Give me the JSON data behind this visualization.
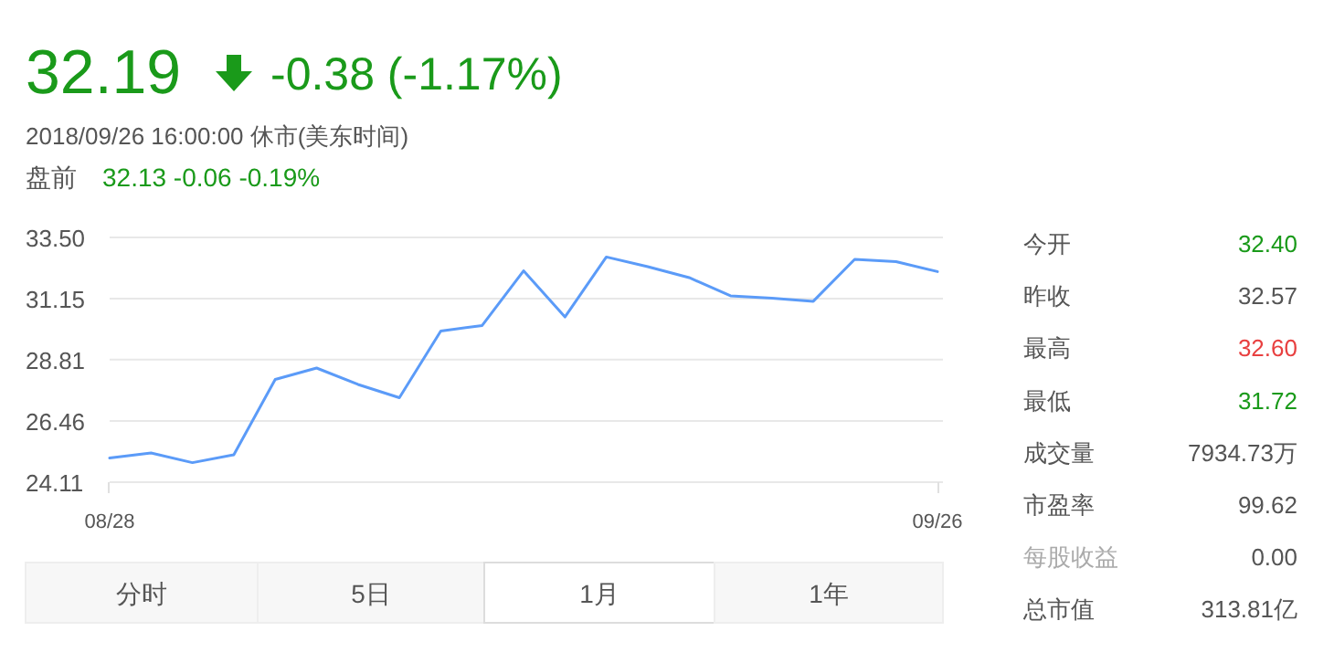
{
  "chart_data": [
    {
      "type": "line",
      "title": "32.19",
      "subtitle": "-0.38 (-1.17%)",
      "annotations": [
        "2018/09/26 16:00:00 休市(美东时间)",
        "盘前",
        "32.13 -0.06 -0.19%",
        "分时",
        "5日",
        "1月",
        "1年"
      ],
      "categories": [
        "08/28",
        null,
        null,
        null,
        null,
        null,
        null,
        null,
        null,
        null,
        null,
        null,
        null,
        null,
        null,
        null,
        null,
        null,
        null,
        null,
        "09/26"
      ],
      "series": [
        {
          "color": "#5b9bf8",
          "values": [
            25.04,
            25.23,
            24.86,
            25.16,
            28.05,
            28.49,
            27.86,
            27.35,
            29.91,
            30.12,
            32.22,
            30.45,
            32.75,
            32.38,
            31.96,
            31.26,
            31.17,
            31.05,
            32.66,
            32.57,
            32.19
          ]
        }
      ],
      "ylim": [
        24.11,
        33.5
      ],
      "yticks": [
        {
          "value": 24.11,
          "label": "24.11"
        },
        {
          "value": 26.46,
          "label": "26.46"
        },
        {
          "value": 28.81,
          "label": "28.81"
        },
        {
          "value": 31.15,
          "label": "31.15"
        },
        {
          "value": 33.5,
          "label": "33.50"
        }
      ],
      "grid": "y",
      "marker": "none",
      "line_style": "solid"
    },
    {
      "type": "other",
      "annotations": [
        "今开",
        "32.40",
        "昨收",
        "32.57",
        "最高",
        "32.60",
        "最低",
        "31.72",
        "成交量",
        "7934.73万",
        "市盈率",
        "99.62",
        "每股收益",
        "0.00",
        "总市值",
        "313.81亿"
      ]
    }
  ]
}
